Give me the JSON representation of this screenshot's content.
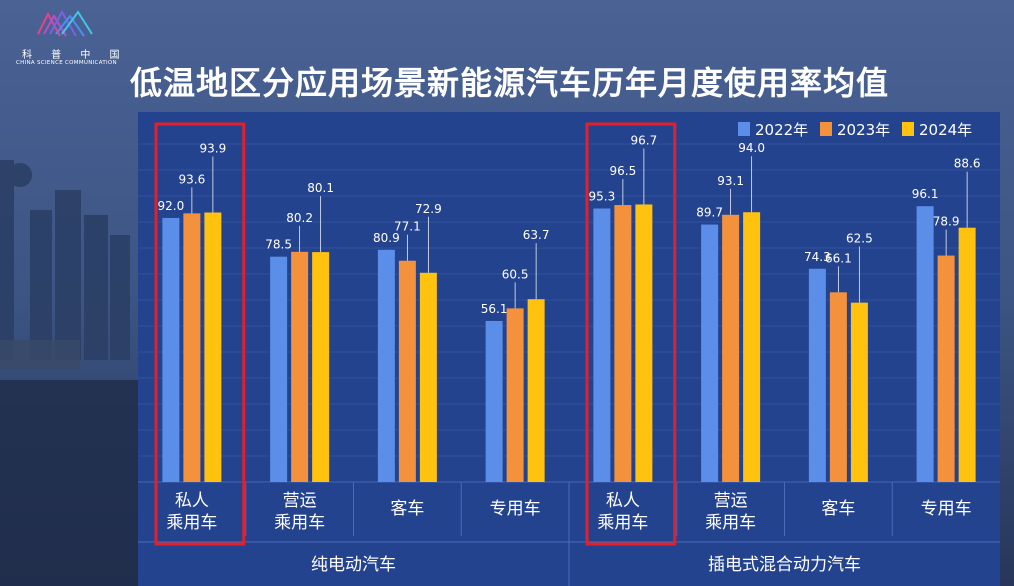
{
  "logo": {
    "cn": "科 普 中 国",
    "en": "CHINA SCIENCE COMMUNICATION"
  },
  "title": "低温地区分应用场景新能源汽车历年月度使用率均值",
  "colors": {
    "2022": "#5b8ee8",
    "2023": "#f4913c",
    "2024": "#ffc20e",
    "highlight": "#e3202a",
    "plot_bg": "#24438f"
  },
  "chart_data": {
    "type": "bar",
    "title": "低温地区分应用场景新能源汽车历年月度使用率均值",
    "categories": [
      {
        "label": [
          "私人",
          "乘用车"
        ],
        "group": "纯电动汽车",
        "highlight": true
      },
      {
        "label": [
          "营运",
          "乘用车"
        ],
        "group": "纯电动汽车",
        "highlight": false
      },
      {
        "label": [
          "客车"
        ],
        "group": "纯电动汽车",
        "highlight": false
      },
      {
        "label": [
          "专用车"
        ],
        "group": "纯电动汽车",
        "highlight": false
      },
      {
        "label": [
          "私人",
          "乘用车"
        ],
        "group": "插电式混合动力汽车",
        "highlight": true
      },
      {
        "label": [
          "营运",
          "乘用车"
        ],
        "group": "插电式混合动力汽车",
        "highlight": false
      },
      {
        "label": [
          "客车"
        ],
        "group": "插电式混合动力汽车",
        "highlight": false
      },
      {
        "label": [
          "专用车"
        ],
        "group": "插电式混合动力汽车",
        "highlight": false
      }
    ],
    "groups": [
      "纯电动汽车",
      "插电式混合动力汽车"
    ],
    "series": [
      {
        "name": "2022年",
        "color": "#5b8ee8",
        "values": [
          92.0,
          78.5,
          80.9,
          56.1,
          95.3,
          89.7,
          74.3,
          96.1
        ]
      },
      {
        "name": "2023年",
        "color": "#f4913c",
        "values": [
          93.6,
          80.2,
          77.1,
          60.5,
          96.5,
          93.1,
          66.1,
          78.9
        ]
      },
      {
        "name": "2024年",
        "color": "#ffc20e",
        "values": [
          93.9,
          80.1,
          72.9,
          63.7,
          96.7,
          94.0,
          62.5,
          88.6
        ]
      }
    ],
    "labels": [
      [
        "92.0",
        "93.6",
        "93.9"
      ],
      [
        "78.5",
        "80.2",
        "80.1"
      ],
      [
        "80.9",
        "77.1",
        "72.9"
      ],
      [
        "56.1",
        "60.5",
        "63.7"
      ],
      [
        "95.3",
        "96.5",
        "96.7"
      ],
      [
        "89.7",
        "93.1",
        "94.0"
      ],
      [
        "74.3",
        "66.1",
        "62.5"
      ],
      [
        "96.1",
        "78.9",
        "88.6"
      ]
    ],
    "ylim": [
      0,
      100
    ],
    "legend_position": "top-right",
    "grid": true
  }
}
